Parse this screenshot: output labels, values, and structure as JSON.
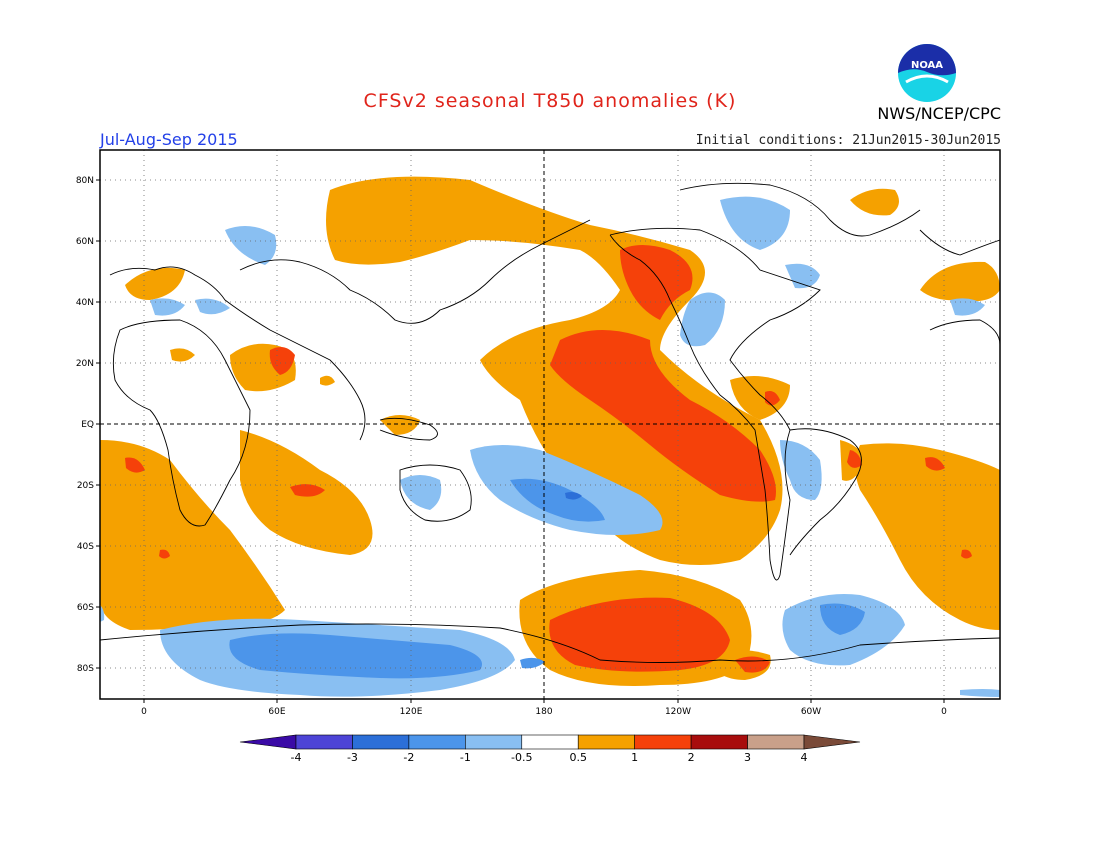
{
  "title": "CFSv2 seasonal T850 anomalies (K)",
  "period": "Jul-Aug-Sep 2015",
  "agency": "NWS/NCEP/CPC",
  "initial_conditions": "Initial conditions: 21Jun2015-30Jun2015",
  "logo_text": "NOAA",
  "lat_labels": [
    "80N",
    "60N",
    "40N",
    "20N",
    "EQ",
    "20S",
    "40S",
    "60S",
    "80S"
  ],
  "lon_labels": [
    "0",
    "60E",
    "120E",
    "180",
    "120W",
    "60W",
    "0"
  ],
  "colorbar": {
    "labels": [
      "-4",
      "-3",
      "-2",
      "-1",
      "-0.5",
      "0.5",
      "1",
      "2",
      "3",
      "4"
    ],
    "colors": [
      "#3a0aa6",
      "#4d44d6",
      "#2c6fd8",
      "#4c95ea",
      "#89bff2",
      "#ffffff",
      "#f5a100",
      "#f5410a",
      "#a80d0d",
      "#c9a08a",
      "#7a4a38"
    ]
  }
}
